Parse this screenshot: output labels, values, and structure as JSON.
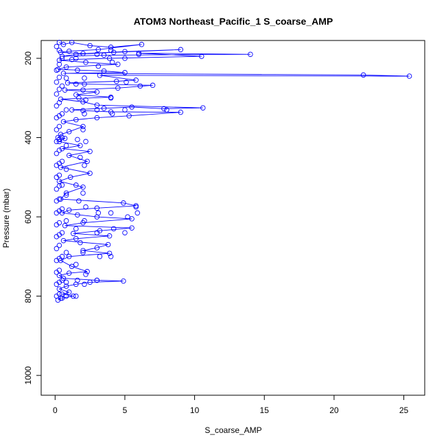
{
  "chart_data": {
    "type": "scatter",
    "title": "ATOM3 Northeast_Pacific_1 S_coarse_AMP",
    "xlabel": "S_coarse_AMP",
    "ylabel": "Pressure (mbar)",
    "xlim": [
      -1,
      26.5
    ],
    "ylim": [
      1050,
      155
    ],
    "y_reversed": true,
    "x_ticks": [
      0,
      5,
      10,
      15,
      20,
      25
    ],
    "y_ticks": [
      200,
      400,
      600,
      800,
      1000
    ],
    "grid": false,
    "legend": "none",
    "point_marker": "open-circle",
    "connect_points": true,
    "series_color": "#0000ff",
    "points": [
      [
        0.3,
        160
      ],
      [
        0.6,
        165
      ],
      [
        1.2,
        160
      ],
      [
        2.5,
        168
      ],
      [
        4.0,
        172
      ],
      [
        6.2,
        165
      ],
      [
        3.1,
        178
      ],
      [
        1.0,
        182
      ],
      [
        0.4,
        185
      ],
      [
        2.0,
        188
      ],
      [
        5.0,
        183
      ],
      [
        9.0,
        178
      ],
      [
        4.2,
        185
      ],
      [
        1.5,
        190
      ],
      [
        0.5,
        195
      ],
      [
        3.5,
        192
      ],
      [
        14.0,
        190
      ],
      [
        6.0,
        187
      ],
      [
        10.5,
        195
      ],
      [
        3.9,
        200
      ],
      [
        1.2,
        203
      ],
      [
        0.3,
        205
      ],
      [
        2.2,
        210
      ],
      [
        4.5,
        215
      ],
      [
        0.8,
        222
      ],
      [
        0.2,
        228
      ],
      [
        3.5,
        232
      ],
      [
        5.0,
        236
      ],
      [
        0.6,
        238
      ],
      [
        22.1,
        242
      ],
      [
        25.4,
        245
      ],
      [
        3.2,
        243
      ],
      [
        5.8,
        255
      ],
      [
        4.4,
        258
      ],
      [
        0.9,
        262
      ],
      [
        2.1,
        265
      ],
      [
        7.0,
        268
      ],
      [
        4.5,
        275
      ],
      [
        0.7,
        280
      ],
      [
        3.0,
        285
      ],
      [
        1.5,
        292
      ],
      [
        4.0,
        298
      ],
      [
        0.4,
        303
      ],
      [
        2.0,
        310
      ],
      [
        3.0,
        318
      ],
      [
        10.6,
        325
      ],
      [
        7.8,
        327
      ],
      [
        5.5,
        323
      ],
      [
        3.5,
        326
      ],
      [
        1.2,
        330
      ],
      [
        2.0,
        332
      ],
      [
        4.0,
        335
      ],
      [
        9.0,
        336
      ],
      [
        5.3,
        345
      ],
      [
        3.0,
        350
      ],
      [
        1.5,
        355
      ],
      [
        0.6,
        360
      ],
      [
        2.0,
        372
      ],
      [
        1.0,
        385
      ],
      [
        0.4,
        392
      ],
      [
        0.2,
        400
      ],
      [
        0.7,
        402
      ],
      [
        0.3,
        410
      ],
      [
        1.8,
        420
      ],
      [
        0.5,
        428
      ],
      [
        2.5,
        435
      ],
      [
        1.0,
        445
      ],
      [
        2.3,
        460
      ],
      [
        0.4,
        475
      ],
      [
        2.5,
        490
      ],
      [
        1.1,
        500
      ],
      [
        0.3,
        510
      ],
      [
        2.0,
        525
      ],
      [
        0.8,
        540
      ],
      [
        0.4,
        555
      ],
      [
        4.9,
        565
      ],
      [
        5.8,
        572
      ],
      [
        3.0,
        578
      ],
      [
        1.0,
        583
      ],
      [
        0.5,
        590
      ],
      [
        3.0,
        600
      ],
      [
        5.5,
        605
      ],
      [
        2.0,
        615
      ],
      [
        0.7,
        622
      ],
      [
        5.5,
        628
      ],
      [
        3.2,
        635
      ],
      [
        1.3,
        642
      ],
      [
        3.9,
        648
      ],
      [
        1.5,
        655
      ],
      [
        0.6,
        660
      ],
      [
        3.8,
        670
      ],
      [
        3.0,
        678
      ],
      [
        2.0,
        685
      ],
      [
        3.9,
        692
      ],
      [
        1.0,
        700
      ],
      [
        0.4,
        710
      ],
      [
        1.2,
        725
      ],
      [
        2.3,
        738
      ],
      [
        1.0,
        742
      ],
      [
        0.3,
        748
      ],
      [
        0.6,
        755
      ],
      [
        3.0,
        760
      ],
      [
        4.9,
        762
      ],
      [
        2.5,
        765
      ],
      [
        1.5,
        770
      ],
      [
        0.8,
        775
      ],
      [
        0.3,
        782
      ],
      [
        1.0,
        790
      ],
      [
        0.5,
        795
      ],
      [
        1.3,
        800
      ],
      [
        0.4,
        805
      ],
      [
        0.2,
        810
      ]
    ],
    "dense_points": [
      [
        0.1,
        170
      ],
      [
        0.1,
        230
      ],
      [
        0.1,
        260
      ],
      [
        0.1,
        290
      ],
      [
        0.1,
        320
      ],
      [
        0.1,
        350
      ],
      [
        0.1,
        380
      ],
      [
        0.1,
        410
      ],
      [
        0.1,
        440
      ],
      [
        0.1,
        470
      ],
      [
        0.1,
        500
      ],
      [
        0.1,
        530
      ],
      [
        0.1,
        560
      ],
      [
        0.1,
        590
      ],
      [
        0.1,
        620
      ],
      [
        0.1,
        650
      ],
      [
        0.1,
        680
      ],
      [
        0.1,
        710
      ],
      [
        0.1,
        740
      ],
      [
        0.1,
        770
      ],
      [
        0.1,
        800
      ],
      [
        0.3,
        180
      ],
      [
        0.3,
        215
      ],
      [
        0.3,
        248
      ],
      [
        0.3,
        278
      ],
      [
        0.3,
        312
      ],
      [
        0.3,
        345
      ],
      [
        0.3,
        372
      ],
      [
        0.3,
        405
      ],
      [
        0.3,
        432
      ],
      [
        0.3,
        465
      ],
      [
        0.3,
        495
      ],
      [
        0.3,
        522
      ],
      [
        0.3,
        555
      ],
      [
        0.3,
        585
      ],
      [
        0.3,
        615
      ],
      [
        0.3,
        645
      ],
      [
        0.3,
        672
      ],
      [
        0.3,
        705
      ],
      [
        0.3,
        735
      ],
      [
        0.3,
        765
      ],
      [
        0.3,
        795
      ],
      [
        0.5,
        200
      ],
      [
        0.5,
        270
      ],
      [
        0.5,
        340
      ],
      [
        0.5,
        400
      ],
      [
        0.5,
        460
      ],
      [
        0.5,
        520
      ],
      [
        0.5,
        580
      ],
      [
        0.5,
        640
      ],
      [
        0.5,
        700
      ],
      [
        0.5,
        760
      ],
      [
        0.5,
        805
      ],
      [
        0.8,
        250
      ],
      [
        0.8,
        330
      ],
      [
        0.8,
        420
      ],
      [
        0.8,
        480
      ],
      [
        0.8,
        545
      ],
      [
        0.8,
        610
      ],
      [
        0.8,
        690
      ],
      [
        0.8,
        765
      ],
      [
        0.8,
        800
      ],
      [
        1.5,
        200
      ],
      [
        1.6,
        230
      ],
      [
        1.5,
        265
      ],
      [
        1.7,
        300
      ],
      [
        1.6,
        405
      ],
      [
        1.8,
        450
      ],
      [
        1.5,
        520
      ],
      [
        1.7,
        560
      ],
      [
        1.6,
        595
      ],
      [
        1.5,
        630
      ],
      [
        1.8,
        665
      ],
      [
        1.5,
        720
      ],
      [
        1.6,
        760
      ],
      [
        1.5,
        800
      ],
      [
        2.1,
        250
      ],
      [
        2.0,
        280
      ],
      [
        2.2,
        305
      ],
      [
        2.1,
        340
      ],
      [
        2.0,
        380
      ],
      [
        2.2,
        410
      ],
      [
        2.1,
        470
      ],
      [
        2.0,
        540
      ],
      [
        2.2,
        575
      ],
      [
        2.1,
        610
      ],
      [
        2.0,
        690
      ],
      [
        2.2,
        745
      ],
      [
        2.1,
        770
      ],
      [
        3.0,
        190
      ],
      [
        3.1,
        220
      ],
      [
        3.0,
        330
      ],
      [
        3.1,
        590
      ],
      [
        3.0,
        640
      ],
      [
        3.2,
        700
      ],
      [
        3.0,
        760
      ],
      [
        4.0,
        180
      ],
      [
        4.1,
        210
      ],
      [
        4.0,
        300
      ],
      [
        4.1,
        340
      ],
      [
        4.0,
        590
      ],
      [
        4.2,
        630
      ],
      [
        4.0,
        700
      ],
      [
        5.0,
        200
      ],
      [
        5.1,
        260
      ],
      [
        5.0,
        330
      ],
      [
        5.2,
        600
      ],
      [
        5.0,
        640
      ],
      [
        6.0,
        190
      ],
      [
        6.1,
        270
      ],
      [
        5.8,
        575
      ],
      [
        5.9,
        590
      ],
      [
        8.0,
        330
      ]
    ]
  }
}
